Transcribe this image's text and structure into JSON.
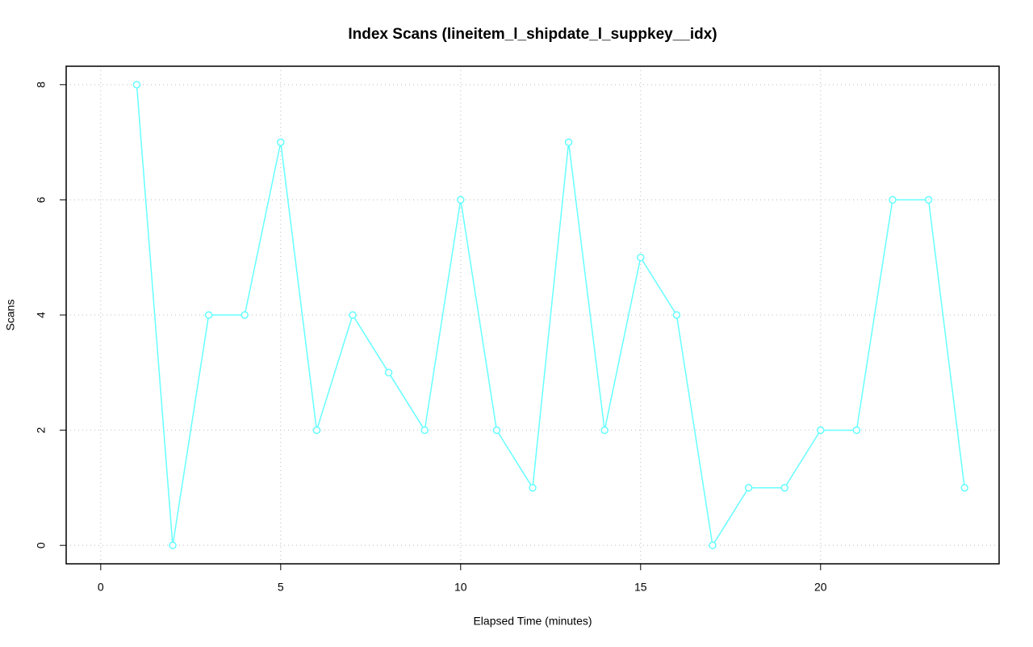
{
  "chart_data": {
    "type": "line",
    "title": "Index Scans (lineitem_l_shipdate_l_suppkey__idx)",
    "x_label": "Elapsed Time (minutes)",
    "y_label": "Scans",
    "x": [
      1,
      2,
      3,
      4,
      5,
      6,
      7,
      8,
      9,
      10,
      11,
      12,
      13,
      14,
      15,
      16,
      17,
      18,
      19,
      20,
      21,
      22,
      23,
      24
    ],
    "series": [
      {
        "color": "#66ffff",
        "values": [
          8,
          0,
          4,
          4,
          7,
          2,
          4,
          3,
          2,
          6,
          2,
          1,
          7,
          2,
          5,
          4,
          0,
          1,
          1,
          2,
          2,
          6,
          6,
          1
        ]
      }
    ],
    "xlim": [
      -0.96,
      24.96
    ],
    "xticks": [
      0,
      5,
      10,
      15,
      20
    ],
    "ylim": [
      -0.32,
      8.32
    ],
    "yticks": [
      0,
      2,
      4,
      6,
      8
    ],
    "grid": true
  }
}
